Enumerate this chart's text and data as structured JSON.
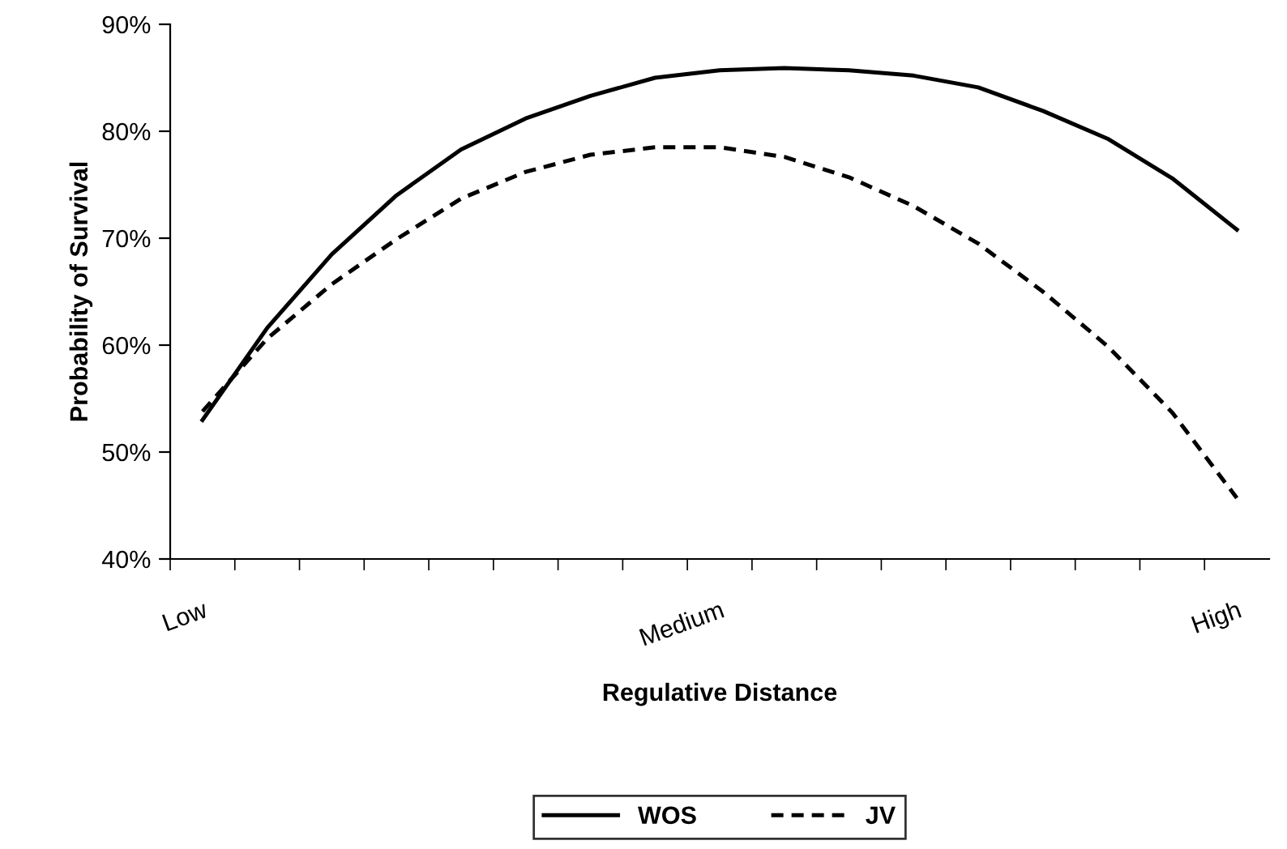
{
  "chart_data": {
    "type": "line",
    "xlabel": "Regulative Distance",
    "ylabel": "Probability of Survival",
    "categories": [
      "Low",
      null,
      null,
      null,
      null,
      null,
      null,
      null,
      "Medium",
      null,
      null,
      null,
      null,
      null,
      null,
      null,
      "High"
    ],
    "series": [
      {
        "name": "WOS",
        "color": "#000000",
        "line_style": "solid",
        "values": [
          53.0,
          61.6,
          68.5,
          74.0,
          78.3,
          81.2,
          83.3,
          85.0,
          85.7,
          85.9,
          85.7,
          85.2,
          84.1,
          81.9,
          79.3,
          75.6,
          70.8
        ]
      },
      {
        "name": "JV",
        "color": "#000000",
        "line_style": "dashed",
        "values": [
          53.8,
          60.6,
          65.7,
          69.9,
          73.7,
          76.2,
          77.8,
          78.5,
          78.5,
          77.6,
          75.7,
          73.0,
          69.5,
          65.0,
          59.9,
          53.7,
          45.7
        ]
      }
    ],
    "ylim": [
      40,
      90
    ],
    "yticks": [
      {
        "value": 40,
        "label": "40%"
      },
      {
        "value": 50,
        "label": "50%"
      },
      {
        "value": 60,
        "label": "60%"
      },
      {
        "value": 70,
        "label": "70%"
      },
      {
        "value": 80,
        "label": "80%"
      },
      {
        "value": 90,
        "label": "90%"
      }
    ],
    "grid": false,
    "legend": "bottom",
    "marker": "none"
  }
}
